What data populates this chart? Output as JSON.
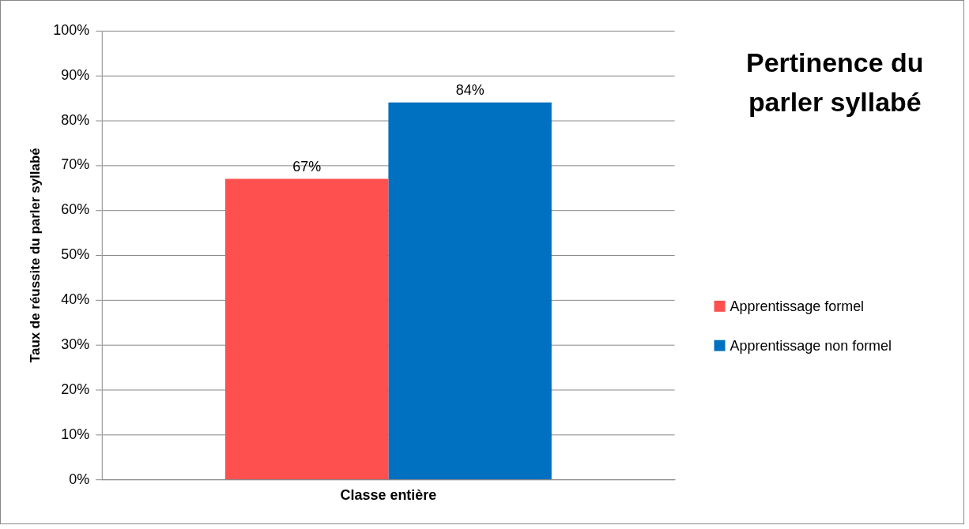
{
  "chart_data": {
    "type": "bar",
    "title": "Pertinence du parler syllabé",
    "ylabel": "Taux de réussite du parler syllabé",
    "categories": [
      "Classe entière"
    ],
    "series": [
      {
        "name": "Apprentissage formel",
        "color": "#ff5050",
        "values": [
          67
        ],
        "value_labels": [
          "67%"
        ]
      },
      {
        "name": "Apprentissage non formel",
        "color": "#0070c0",
        "values": [
          84
        ],
        "value_labels": [
          "84%"
        ]
      }
    ],
    "ylim": [
      0,
      100
    ],
    "yticks": [
      {
        "value": 0,
        "label": "0%"
      },
      {
        "value": 10,
        "label": "10%"
      },
      {
        "value": 20,
        "label": "20%"
      },
      {
        "value": 30,
        "label": "30%"
      },
      {
        "value": 40,
        "label": "40%"
      },
      {
        "value": 50,
        "label": "50%"
      },
      {
        "value": 60,
        "label": "60%"
      },
      {
        "value": 70,
        "label": "70%"
      },
      {
        "value": 80,
        "label": "80%"
      },
      {
        "value": 90,
        "label": "90%"
      },
      {
        "value": 100,
        "label": "100%"
      }
    ],
    "grid": "y",
    "legend": "right"
  }
}
